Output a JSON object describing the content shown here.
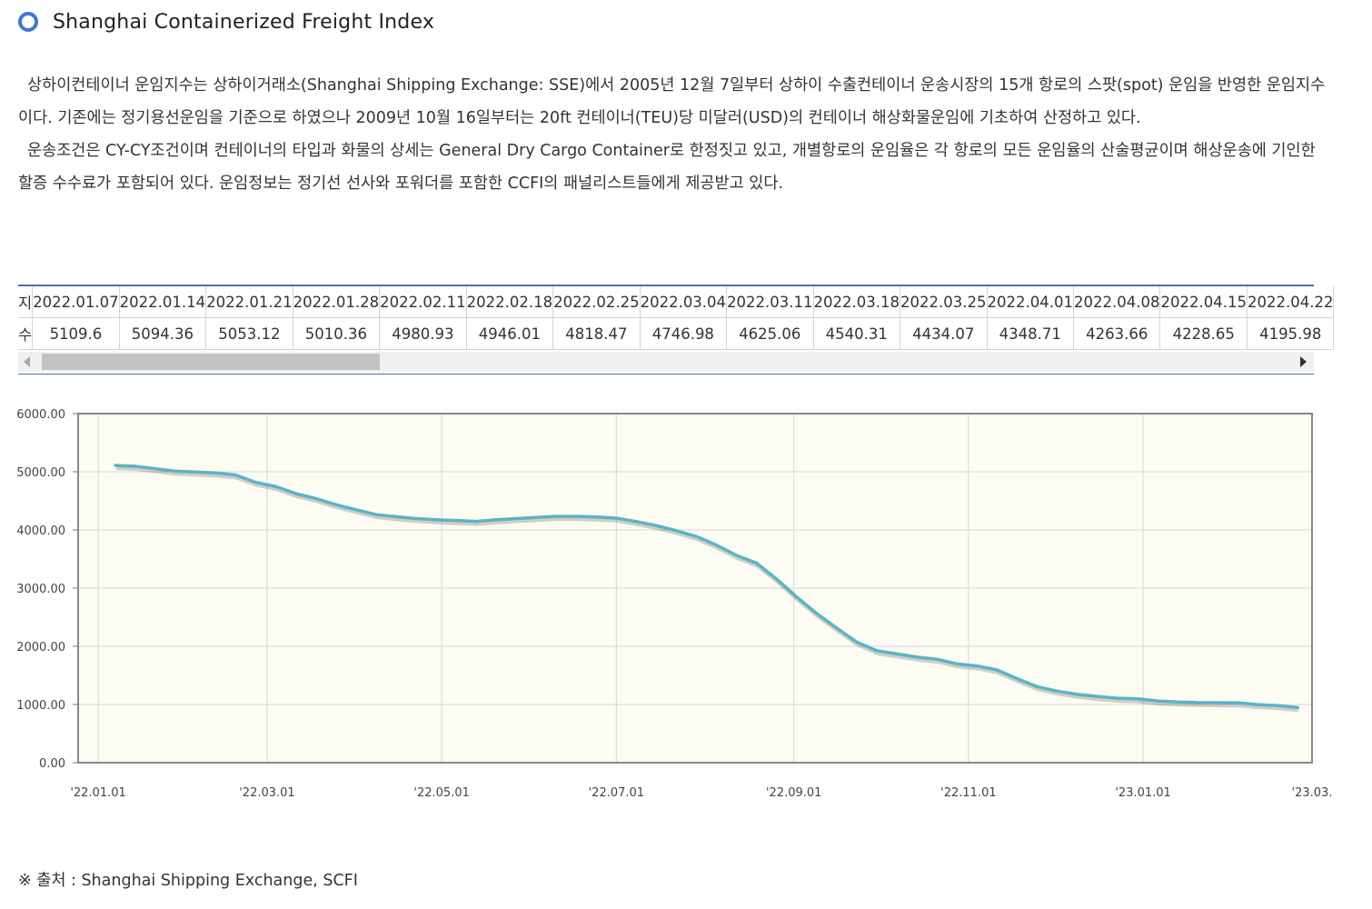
{
  "page": {
    "title": "Shanghai Containerized Freight Index",
    "description": [
      "상하이컨테이너 운임지수는 상하이거래소(Shanghai Shipping Exchange: SSE)에서 2005년 12월 7일부터 상하이 수출컨테이너 운송시장의 15개 항로의 스팟(spot) 운임을 반영한 운임지수이다. 기존에는 정기용선운임을 기준으로 하였으나 2009년 10월 16일부터는 20ft 컨테이너(TEU)당 미달러(USD)의 컨테이너 해상화물운임에 기초하여 산정하고 있다.",
      "운송조건은 CY-CY조건이며 컨테이너의 타입과 화물의 상세는 General Dry Cargo Container로 한정짓고 있고, 개별항로의 운임율은 각 항로의 모든 운임율의 산술평균이며 해상운송에 기인한 할증 수수료가 포함되어 있다. 운임정보는 정기선 선사와 포워더를 포함한 CCFI의 패널리스트들에게 제공받고 있다."
    ],
    "source": "※ 출처 : Shanghai Shipping Exchange, SCFI"
  },
  "table": {
    "row1_header": "지",
    "row2_header": "수",
    "dates": [
      "2022.01.07",
      "2022.01.14",
      "2022.01.21",
      "2022.01.28",
      "2022.02.11",
      "2022.02.18",
      "2022.02.25",
      "2022.03.04",
      "2022.03.11",
      "2022.03.18",
      "2022.03.25",
      "2022.04.01",
      "2022.04.08",
      "2022.04.15",
      "2022.04.22"
    ],
    "values": [
      "5109.6",
      "5094.36",
      "5053.12",
      "5010.36",
      "4980.93",
      "4946.01",
      "4818.47",
      "4746.98",
      "4625.06",
      "4540.31",
      "4434.07",
      "4348.71",
      "4263.66",
      "4228.65",
      "4195.98"
    ]
  },
  "chart_data": {
    "type": "line",
    "title": "",
    "xlabel": "",
    "ylabel": "",
    "ylim": [
      0,
      6000
    ],
    "xlim": [
      "2021-12-25",
      "2023-03-01"
    ],
    "yticks": [
      "0.00",
      "1000.00",
      "2000.00",
      "3000.00",
      "4000.00",
      "5000.00",
      "6000.00"
    ],
    "xticks": [
      {
        "date": "2022-01-01",
        "label": "'22.01.01"
      },
      {
        "date": "2022-03-01",
        "label": "'22.03.01"
      },
      {
        "date": "2022-05-01",
        "label": "'22.05.01"
      },
      {
        "date": "2022-07-01",
        "label": "'22.07.01"
      },
      {
        "date": "2022-09-01",
        "label": "'22.09.01"
      },
      {
        "date": "2022-11-01",
        "label": "'22.11.01"
      },
      {
        "date": "2023-01-01",
        "label": "'23.01.01"
      },
      {
        "date": "2023-03-01",
        "label": "'23.03."
      }
    ],
    "grid": true,
    "colors": {
      "line": "#5ab4c6",
      "plot_bg": "#fdfcf3",
      "frame": "#888888"
    },
    "series": [
      {
        "x": [
          "2022-01-07",
          "2022-01-14",
          "2022-01-21",
          "2022-01-28",
          "2022-02-11",
          "2022-02-18",
          "2022-02-25",
          "2022-03-04",
          "2022-03-11",
          "2022-03-18",
          "2022-03-25",
          "2022-04-01",
          "2022-04-08",
          "2022-04-15",
          "2022-04-22",
          "2022-04-29",
          "2022-05-06",
          "2022-05-13",
          "2022-05-20",
          "2022-05-27",
          "2022-06-03",
          "2022-06-10",
          "2022-06-17",
          "2022-06-24",
          "2022-07-01",
          "2022-07-08",
          "2022-07-15",
          "2022-07-22",
          "2022-07-29",
          "2022-08-05",
          "2022-08-12",
          "2022-08-19",
          "2022-08-26",
          "2022-09-02",
          "2022-09-09",
          "2022-09-16",
          "2022-09-23",
          "2022-09-30",
          "2022-10-14",
          "2022-10-21",
          "2022-10-28",
          "2022-11-04",
          "2022-11-11",
          "2022-11-18",
          "2022-11-25",
          "2022-12-02",
          "2022-12-09",
          "2022-12-16",
          "2022-12-23",
          "2022-12-30",
          "2023-01-06",
          "2023-01-13",
          "2023-01-20",
          "2023-02-03",
          "2023-02-10",
          "2023-02-17",
          "2023-02-24"
        ],
        "values": [
          5109.6,
          5094.36,
          5053.12,
          5010.36,
          4980.93,
          4946.01,
          4818.47,
          4746.98,
          4625.06,
          4540.31,
          4434.07,
          4348.71,
          4263.66,
          4228.65,
          4195.98,
          4177.28,
          4163.08,
          4147.22,
          4175.4,
          4195.02,
          4216.13,
          4233.9,
          4232.97,
          4221.88,
          4203.44,
          4143.87,
          4074.7,
          3987.48,
          3887.72,
          3739.72,
          3562.67,
          3429.83,
          3154.05,
          2847.62,
          2562.12,
          2312.65,
          2072.04,
          1922.95,
          1814.0,
          1778.69,
          1697.63,
          1663.0,
          1593.14,
          1443.29,
          1306.84,
          1229.05,
          1173.3,
          1138.79,
          1107.5,
          1097.0,
          1061.0,
          1043.0,
          1033.0,
          1029.75,
          999.0,
          980.0,
          946.68
        ]
      }
    ]
  }
}
